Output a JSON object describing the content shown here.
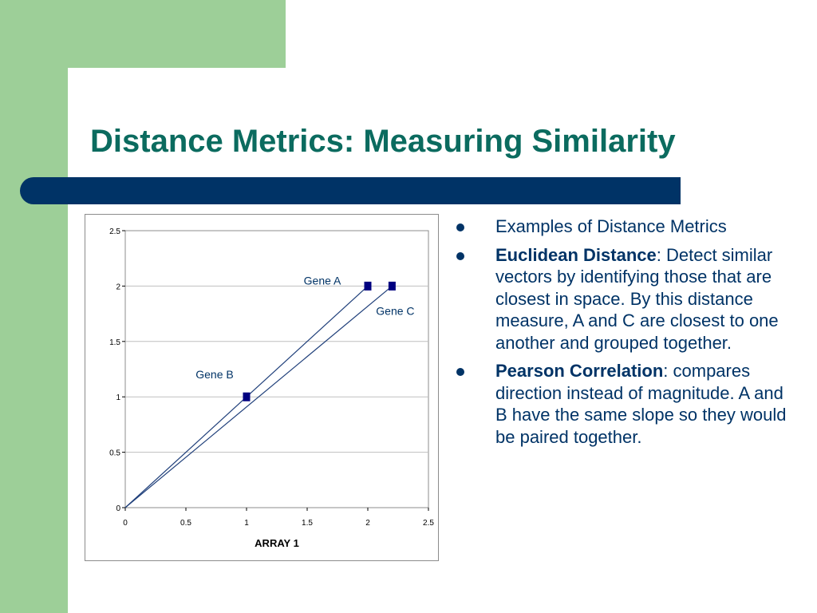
{
  "colors": {
    "side_green": "#9dcf98",
    "title_teal": "#0b6b5f",
    "navy": "#003366",
    "text_navy": "#003366",
    "marker": "#000080",
    "line": "#1f3f7a",
    "grid": "#bfbfbf"
  },
  "title": "Distance Metrics: Measuring Similarity",
  "bullets": [
    {
      "bold": "",
      "text": "Examples of Distance Metrics"
    },
    {
      "bold": "Euclidean Distance",
      "text": ": Detect similar vectors by identifying those that are closest in space. By this distance measure, A and C are closest to one another and grouped together."
    },
    {
      "bold": "Pearson Correlation",
      "text": ": compares direction instead of magnitude. A and B have the same slope so they would be paired together."
    }
  ],
  "chart_data": {
    "type": "scatter",
    "xlabel": "ARRAY 1",
    "ylabel": "",
    "xlim": [
      0,
      2.5
    ],
    "ylim": [
      0,
      2.5
    ],
    "xticks": [
      "0",
      "0.5",
      "1",
      "1.5",
      "2",
      "2.5"
    ],
    "yticks": [
      "0",
      "0.5",
      "1",
      "1.5",
      "2",
      "2.5"
    ],
    "grid": "horizontal",
    "points": [
      {
        "name": "Gene A",
        "x": 2,
        "y": 2
      },
      {
        "name": "Gene B",
        "x": 1,
        "y": 1
      },
      {
        "name": "Gene C",
        "x": 2.2,
        "y": 2
      }
    ],
    "vectors_from_origin": [
      "Gene A",
      "Gene C"
    ]
  }
}
